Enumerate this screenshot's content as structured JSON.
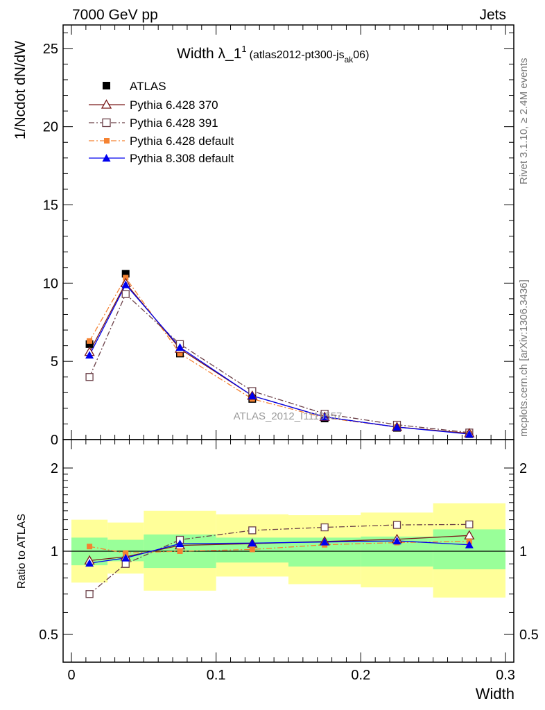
{
  "header": {
    "left": "7000 GeV pp",
    "right": "Jets"
  },
  "side_text": {
    "rivet": "Rivet 3.1.10, ≥ 2.4M events",
    "mcplots": "mcplots.cern.ch [arXiv:1306.3436]"
  },
  "title": {
    "main": "Width λ_1",
    "sup": "1",
    "sub_pre": "(atlas2012-pt300-js",
    "sub_ak": "ak",
    "sub_post": "06)"
  },
  "watermark": "ATLAS_2012_I1119557",
  "colors": {
    "atlas": "#000000",
    "pythia6_370": "#7b1a1a",
    "pythia6_391": "#6b4048",
    "pythia6_default": "#f58231",
    "pythia8_default": "#0000ee",
    "band_inner": "#99ff99",
    "band_outer": "#ffff99"
  },
  "chart_data": [
    {
      "type": "line",
      "panel": "main",
      "xlabel": "Width",
      "ylabel": "1/Ncdot dN/dW",
      "xlim": [
        0,
        0.3
      ],
      "ylim": [
        0,
        26.5
      ],
      "yticks": [
        0,
        5,
        10,
        15,
        20,
        25
      ],
      "ytick_labels": [
        "0",
        "5",
        "10",
        "15",
        "20",
        "25"
      ],
      "x": [
        0.0125,
        0.0375,
        0.075,
        0.125,
        0.175,
        0.225,
        0.275
      ],
      "series": [
        {
          "name": "ATLAS",
          "marker": "square-filled",
          "line": "none",
          "values": [
            6.1,
            10.6,
            5.5,
            2.6,
            1.35,
            0.75,
            0.35
          ]
        },
        {
          "name": "Pythia 6.428 370",
          "marker": "triangle-open",
          "line": "solid",
          "values": [
            5.6,
            10.0,
            5.8,
            2.8,
            1.45,
            0.8,
            0.4
          ]
        },
        {
          "name": "Pythia 6.428 391",
          "marker": "square-open",
          "line": "dashdot",
          "values": [
            4.0,
            9.3,
            6.1,
            3.1,
            1.65,
            0.95,
            0.45
          ]
        },
        {
          "name": "Pythia 6.428 default",
          "marker": "square-filled-small",
          "line": "dashdot",
          "values": [
            6.3,
            10.35,
            5.5,
            2.6,
            1.4,
            0.8,
            0.4
          ]
        },
        {
          "name": "Pythia 8.308 default",
          "marker": "triangle-filled",
          "line": "solid",
          "values": [
            5.4,
            9.9,
            5.9,
            2.8,
            1.45,
            0.8,
            0.35
          ]
        }
      ]
    },
    {
      "type": "line",
      "panel": "ratio",
      "xlabel": "Width",
      "ylabel": "Ratio to ATLAS",
      "xlim": [
        0,
        0.3
      ],
      "ylim": [
        0.4,
        2.4
      ],
      "yscale": "log",
      "yticks": [
        0.5,
        1,
        2
      ],
      "ytick_labels": [
        "0.5",
        "1",
        "2"
      ],
      "xticks": [
        0,
        0.1,
        0.2,
        0.3
      ],
      "xtick_labels": [
        "0",
        "0.1",
        "0.2",
        "0.3"
      ],
      "x": [
        0.0125,
        0.0375,
        0.075,
        0.125,
        0.175,
        0.225,
        0.275
      ],
      "bands": {
        "bin_edges": [
          0,
          0.025,
          0.05,
          0.1,
          0.15,
          0.2,
          0.25,
          0.3
        ],
        "inner_low": [
          0.89,
          0.92,
          0.87,
          0.91,
          0.88,
          0.88,
          0.86
        ],
        "inner_high": [
          1.12,
          1.1,
          1.15,
          1.12,
          1.12,
          1.13,
          1.2
        ],
        "outer_low": [
          0.77,
          0.83,
          0.72,
          0.81,
          0.76,
          0.74,
          0.68
        ],
        "outer_high": [
          1.3,
          1.27,
          1.4,
          1.36,
          1.35,
          1.38,
          1.49
        ]
      },
      "series": [
        {
          "name": "Pythia 6.428 370",
          "values": [
            0.925,
            0.955,
            1.05,
            1.065,
            1.085,
            1.105,
            1.14
          ]
        },
        {
          "name": "Pythia 6.428 391",
          "values": [
            0.7,
            0.9,
            1.1,
            1.19,
            1.22,
            1.245,
            1.25
          ]
        },
        {
          "name": "Pythia 6.428 default",
          "values": [
            1.04,
            0.985,
            1.0,
            1.015,
            1.055,
            1.075,
            1.085
          ]
        },
        {
          "name": "Pythia 8.308 default",
          "values": [
            0.905,
            0.945,
            1.065,
            1.07,
            1.08,
            1.09,
            1.055
          ]
        }
      ]
    }
  ]
}
